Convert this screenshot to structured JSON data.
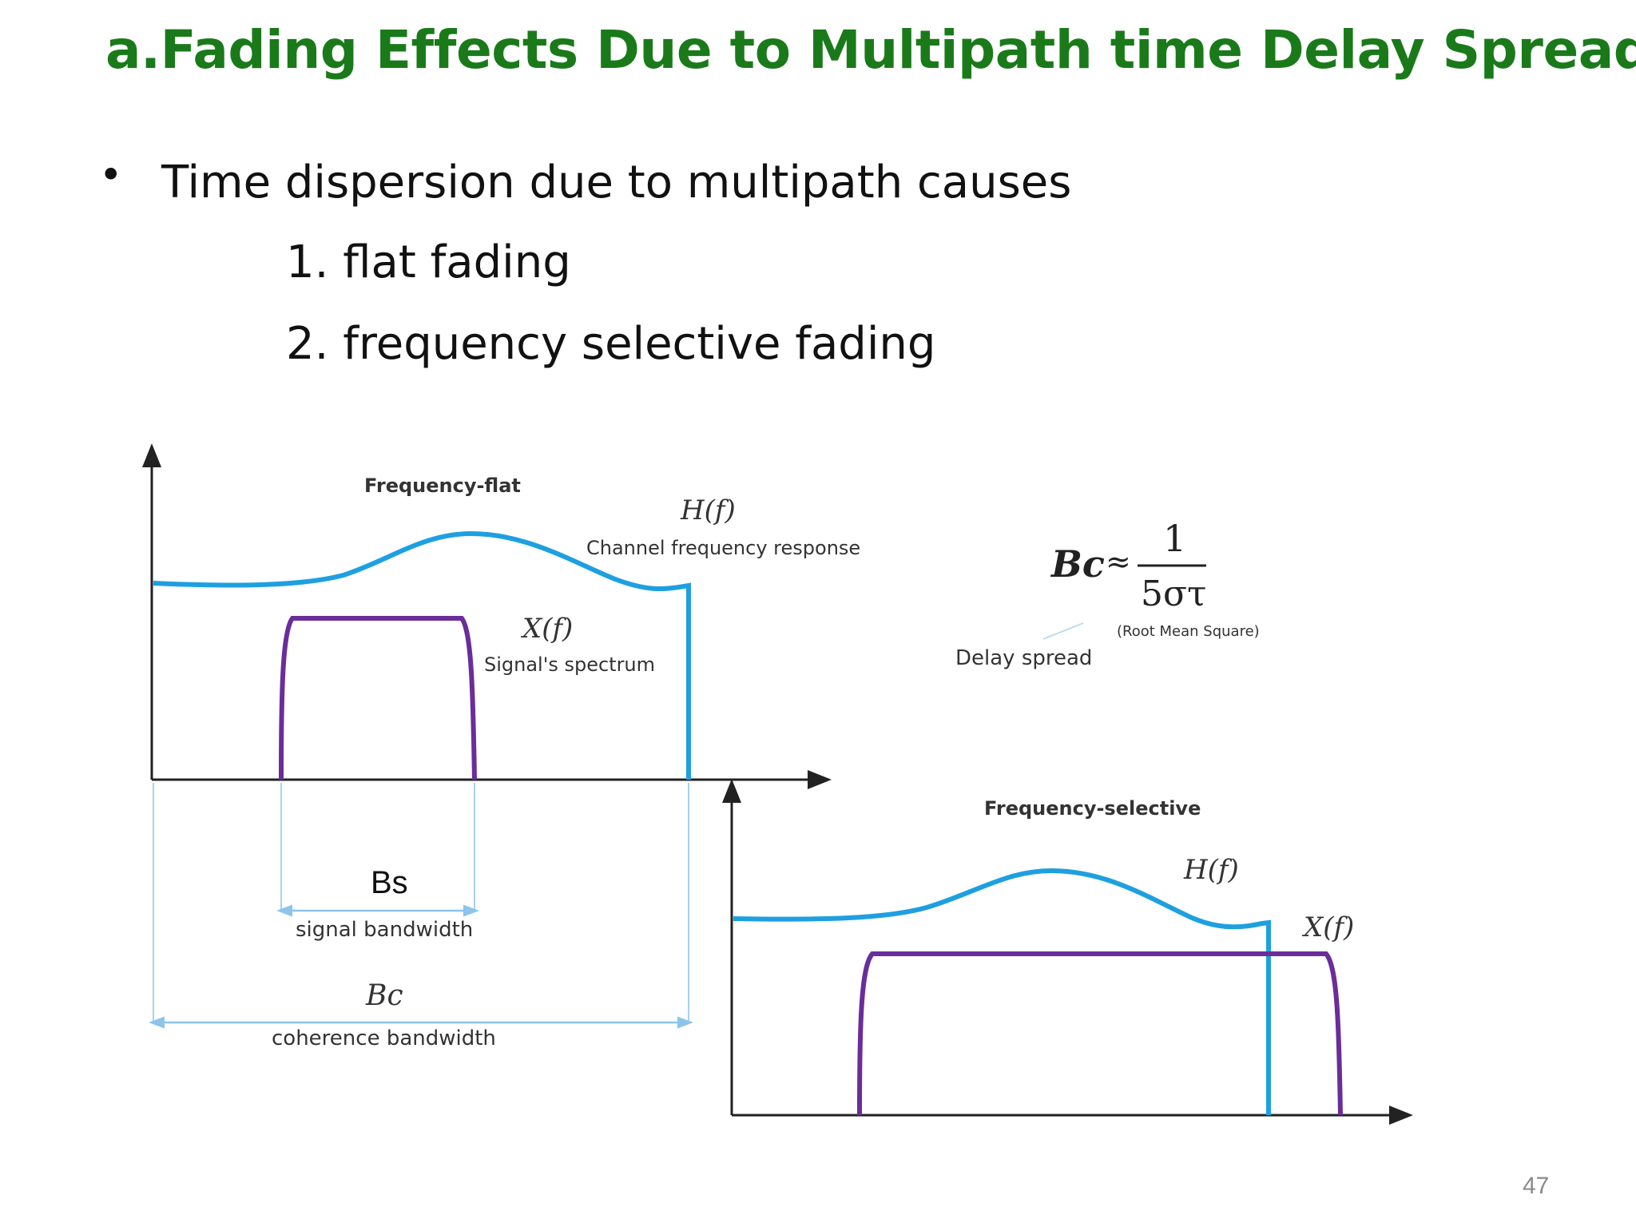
{
  "slide": {
    "title": "a.Fading Effects Due to Multipath time Delay Spread",
    "bullet": "Time dispersion due to multipath causes",
    "items": [
      "1.  flat fading",
      "2. frequency selective fading"
    ],
    "page_number": "47"
  },
  "flat_diagram": {
    "title": "Frequency-flat",
    "h_label": "H(f)",
    "h_caption": "Channel frequency response",
    "x_label": "X(f)",
    "x_caption": "Signal's spectrum",
    "bs_label": "Bs",
    "bs_caption": "signal bandwidth",
    "bc_label": "Bc",
    "bc_caption": "coherence bandwidth"
  },
  "formula": {
    "lhs": "Bc",
    "approx": "≈",
    "numerator": "1",
    "denominator": "5στ",
    "rms_note": "(Root Mean Square)",
    "delay_label": "Delay spread"
  },
  "selective_diagram": {
    "title": "Frequency-selective",
    "h_label": "H(f)",
    "x_label": "X(f)"
  },
  "colors": {
    "title": "#1a7a1a",
    "channel": "#1ea0e0",
    "signal": "#6a2d9a",
    "axis": "#222222",
    "dim": "#8cc4ea"
  }
}
